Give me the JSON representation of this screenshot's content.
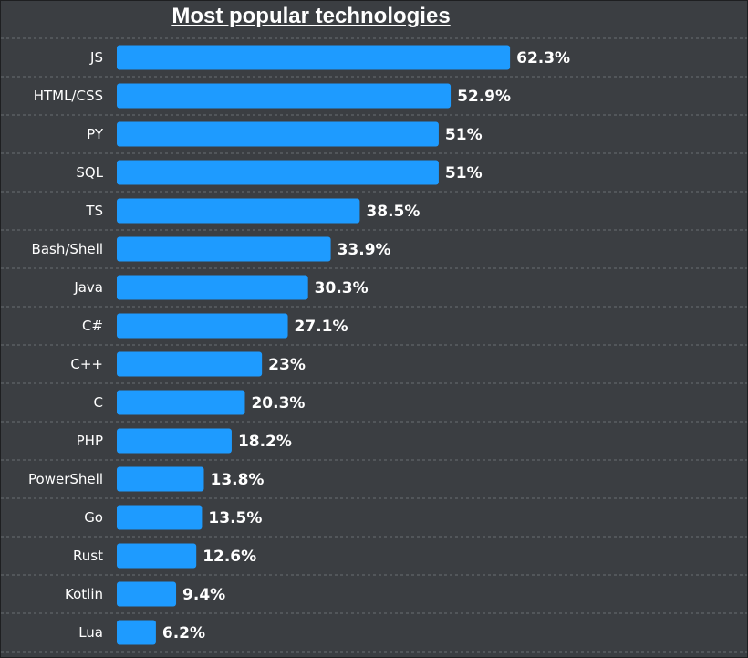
{
  "chart_data": {
    "type": "bar",
    "orientation": "horizontal",
    "title": "Most popular technologies",
    "categories": [
      "JS",
      "HTML/CSS",
      "PY",
      "SQL",
      "TS",
      "Bash/Shell",
      "Java",
      "C#",
      "C++",
      "C",
      "PHP",
      "PowerShell",
      "Go",
      "Rust",
      "Kotlin",
      "Lua"
    ],
    "values": [
      62.3,
      52.9,
      51,
      51,
      38.5,
      33.9,
      30.3,
      27.1,
      23,
      20.3,
      18.2,
      13.8,
      13.5,
      12.6,
      9.4,
      6.2
    ],
    "value_labels": [
      "62.3%",
      "52.9%",
      "51%",
      "51%",
      "38.5%",
      "33.9%",
      "30.3%",
      "27.1%",
      "23%",
      "20.3%",
      "18.2%",
      "13.8%",
      "13.5%",
      "12.6%",
      "9.4%",
      "6.2%"
    ],
    "grid": true,
    "colors": {
      "bar": "#1e9bff",
      "background": "#3b3e42",
      "text": "#ffffff",
      "grid": "#6a6d72"
    }
  }
}
